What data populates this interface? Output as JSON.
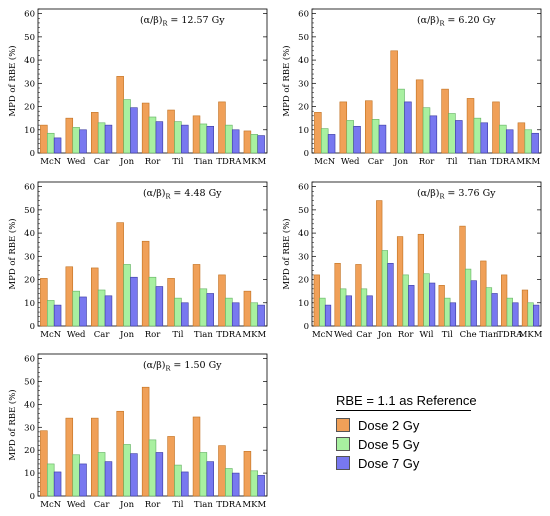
{
  "legend": {
    "title": "RBE = 1.1 as Reference",
    "items": [
      {
        "label": "Dose 2 Gy",
        "color": "#f0a058"
      },
      {
        "label": "Dose 5 Gy",
        "color": "#a8f0a0"
      },
      {
        "label": "Dose 7 Gy",
        "color": "#7878f0"
      }
    ]
  },
  "chart_data": [
    {
      "type": "bar",
      "title": "(α/β)R = 12.57 Gy",
      "ylabel": "MPD of RBE (%)",
      "ylim": [
        0,
        62
      ],
      "yticks": [
        0,
        10,
        20,
        30,
        40,
        50,
        60
      ],
      "categories": [
        "McN",
        "Wed",
        "Car",
        "Jon",
        "Ror",
        "Til",
        "Tian",
        "TDRA",
        "MKM"
      ],
      "series": [
        {
          "name": "Dose 2 Gy",
          "values": [
            12,
            15,
            17.5,
            33,
            21.5,
            18.5,
            16,
            22,
            9.5
          ]
        },
        {
          "name": "Dose 5 Gy",
          "values": [
            8.5,
            11,
            13,
            23,
            15.5,
            13.5,
            12.5,
            12,
            8
          ]
        },
        {
          "name": "Dose 7 Gy",
          "values": [
            6.5,
            10,
            12,
            19.5,
            13.5,
            12,
            11.5,
            10,
            7.5
          ]
        }
      ]
    },
    {
      "type": "bar",
      "title": "(α/β)R = 6.20 Gy",
      "ylabel": "MPD of RBE (%)",
      "ylim": [
        0,
        62
      ],
      "yticks": [
        0,
        10,
        20,
        30,
        40,
        50,
        60
      ],
      "categories": [
        "McN",
        "Wed",
        "Car",
        "Jon",
        "Ror",
        "Til",
        "Tian",
        "TDRA",
        "MKM"
      ],
      "series": [
        {
          "name": "Dose 2 Gy",
          "values": [
            17.5,
            22,
            22.5,
            44,
            31.5,
            27.5,
            23.5,
            22,
            13
          ]
        },
        {
          "name": "Dose 5 Gy",
          "values": [
            10.5,
            14,
            14.5,
            27.5,
            19.5,
            17,
            15,
            12,
            10
          ]
        },
        {
          "name": "Dose 7 Gy",
          "values": [
            8,
            11.5,
            12,
            22,
            16,
            14,
            13,
            10,
            8.5
          ]
        }
      ]
    },
    {
      "type": "bar",
      "title": "(α/β)R = 4.48 Gy",
      "ylabel": "MPD of RBE (%)",
      "ylim": [
        0,
        62
      ],
      "yticks": [
        0,
        10,
        20,
        30,
        40,
        50,
        60
      ],
      "categories": [
        "McN",
        "Wed",
        "Car",
        "Jon",
        "Ror",
        "Til",
        "Tian",
        "TDRA",
        "MKM"
      ],
      "series": [
        {
          "name": "Dose 2 Gy",
          "values": [
            20.5,
            25.5,
            25,
            44.5,
            36.5,
            20.5,
            26.5,
            22,
            15
          ]
        },
        {
          "name": "Dose 5 Gy",
          "values": [
            11,
            15,
            15.5,
            26.5,
            21,
            12,
            16,
            12,
            10
          ]
        },
        {
          "name": "Dose 7 Gy",
          "values": [
            9,
            12.5,
            13,
            21,
            17,
            10,
            14,
            10,
            9
          ]
        }
      ]
    },
    {
      "type": "bar",
      "title": "(α/β)R = 3.76 Gy",
      "ylabel": "MPD of RBE (%)",
      "ylim": [
        0,
        62
      ],
      "yticks": [
        0,
        10,
        20,
        30,
        40,
        50,
        60
      ],
      "categories": [
        "McN",
        "Wed",
        "Car",
        "Jon",
        "Ror",
        "Wil",
        "Til",
        "Che",
        "Tian",
        "TDRA",
        "MKM"
      ],
      "series": [
        {
          "name": "Dose 2 Gy",
          "values": [
            22,
            27,
            26.5,
            54,
            38.5,
            39.5,
            17.5,
            43,
            28,
            22,
            15.5
          ]
        },
        {
          "name": "Dose 5 Gy",
          "values": [
            12,
            16,
            16,
            32.5,
            22,
            22.5,
            12,
            24.5,
            16.5,
            12,
            10
          ]
        },
        {
          "name": "Dose 7 Gy",
          "values": [
            9,
            13,
            13,
            27,
            17.5,
            18.5,
            10,
            19.5,
            14,
            10,
            9
          ]
        }
      ]
    },
    {
      "type": "bar",
      "title": "(α/β)R = 1.50 Gy",
      "ylabel": "MPD of RBE (%)",
      "ylim": [
        0,
        62
      ],
      "yticks": [
        0,
        10,
        20,
        30,
        40,
        50,
        60
      ],
      "categories": [
        "McN",
        "Wed",
        "Car",
        "Jon",
        "Ror",
        "Til",
        "Tian",
        "TDRA",
        "MKM"
      ],
      "series": [
        {
          "name": "Dose 2 Gy",
          "values": [
            28.5,
            34,
            34,
            37,
            47.5,
            26,
            34.5,
            22,
            19.5
          ]
        },
        {
          "name": "Dose 5 Gy",
          "values": [
            14,
            18,
            19,
            22.5,
            24.5,
            13.5,
            19,
            12,
            11
          ]
        },
        {
          "name": "Dose 7 Gy",
          "values": [
            10.5,
            14,
            15,
            18.5,
            19,
            10.5,
            15,
            10,
            9
          ]
        }
      ]
    }
  ]
}
